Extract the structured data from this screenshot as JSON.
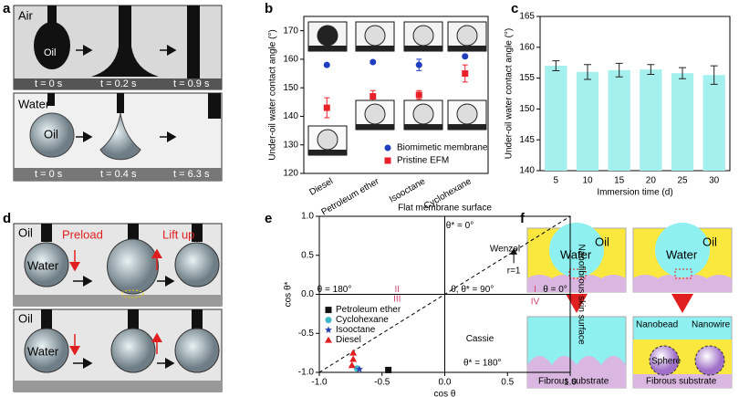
{
  "panel_labels": [
    "a",
    "b",
    "c",
    "d",
    "e",
    "f"
  ],
  "photo_a": {
    "row1": [
      "Air",
      "Oil",
      "t = 0 s",
      "t = 0.2 s",
      "t = 0.9 s"
    ],
    "row2": [
      "Water",
      "Oil",
      "t = 0 s",
      "t = 0.4 s",
      "t = 6.3 s"
    ]
  },
  "photo_d": {
    "row1": [
      "Oil",
      "Preload",
      "Lift up",
      "Water"
    ],
    "row2": [
      "Oil",
      "Water"
    ]
  },
  "diagram_f": {
    "left": [
      "Oil",
      "Water",
      "Fibrous substrate"
    ],
    "right": [
      "Oil",
      "Water",
      "Nanobead",
      "Nanowire",
      "Sphere",
      "Fibrous substrate"
    ]
  },
  "chart_data": [
    {
      "type": "errorbar",
      "ylabel": "Under-oil  water contact angle (°)",
      "categories": [
        "Diesel",
        "Petroleum ether",
        "Isooctane",
        "Cyclohexane"
      ],
      "ylim": [
        120,
        175
      ],
      "yticks": [
        120,
        130,
        140,
        150,
        160,
        170
      ],
      "legend": "lower right",
      "series": [
        {
          "name": "Biomimetic membrane",
          "color": "#1f3fbf",
          "marker": "circle",
          "values": [
            158,
            159,
            158,
            161
          ],
          "errors": [
            0.5,
            0.5,
            2,
            0.5
          ]
        },
        {
          "name": "Pristine EFM",
          "color": "#e8202a",
          "marker": "square",
          "values": [
            143,
            147,
            147.5,
            155
          ],
          "errors": [
            3.5,
            2,
            1.5,
            3
          ]
        }
      ]
    },
    {
      "type": "bar",
      "ylabel": "Under-oil water contact angle (°)",
      "xlabel": "Immersion time (d)",
      "categories": [
        "5",
        "10",
        "15",
        "20",
        "25",
        "30"
      ],
      "values": [
        157,
        156,
        156.3,
        156.4,
        155.8,
        155.5
      ],
      "errors": [
        0.8,
        1.2,
        1.1,
        0.8,
        0.9,
        1.5
      ],
      "color": "#a3f0ee",
      "ylim": [
        140,
        165
      ],
      "yticks": [
        140,
        145,
        150,
        155,
        160,
        165
      ]
    },
    {
      "type": "scatter",
      "title": "Flat membrane surface",
      "right_label": "Nanofibrous skin surface",
      "xlabel": "cos θ",
      "ylabel": "cos θ*",
      "xlim": [
        -1,
        1
      ],
      "ylim": [
        -1,
        1
      ],
      "xticks": [
        {
          "value": -1,
          "label": "-1.0"
        },
        {
          "value": -0.5,
          "label": "-0.5"
        },
        {
          "value": 0,
          "label": "0.0"
        },
        {
          "value": 0.5,
          "label": "0.5"
        },
        {
          "value": 1,
          "label": "1.0"
        }
      ],
      "yticks": [
        {
          "value": -1,
          "label": "-1.0"
        },
        {
          "value": -0.5,
          "label": "-0.5"
        },
        {
          "value": 0,
          "label": "0.0"
        },
        {
          "value": 0.5,
          "label": "0.5"
        },
        {
          "value": 1,
          "label": "1.0"
        }
      ],
      "annotations": [
        "θ* = 0°",
        "Wenzel",
        "r=1",
        "θ = 180°",
        "θ, θ* = 90°",
        "θ = 0°",
        "II",
        "I",
        "III",
        "IV",
        "Cassie",
        "θ* = 180°"
      ],
      "legend": "lower left",
      "series": [
        {
          "name": "Petroleum ether",
          "color": "#111111",
          "marker": "square",
          "x": [
            -0.45
          ],
          "values": [
            -0.97
          ]
        },
        {
          "name": "Cyclohexane",
          "color": "#3fb8c8",
          "marker": "circle",
          "x": [
            -0.7
          ],
          "values": [
            -0.95
          ]
        },
        {
          "name": "Isooctane",
          "color": "#2840b0",
          "marker": "star",
          "x": [
            -0.68
          ],
          "values": [
            -0.96
          ]
        },
        {
          "name": "Diesel",
          "color": "#e02020",
          "marker": "triangle",
          "x": [
            -0.73,
            -0.73,
            -0.74
          ],
          "values": [
            -0.75,
            -0.83,
            -0.91
          ]
        }
      ]
    }
  ]
}
